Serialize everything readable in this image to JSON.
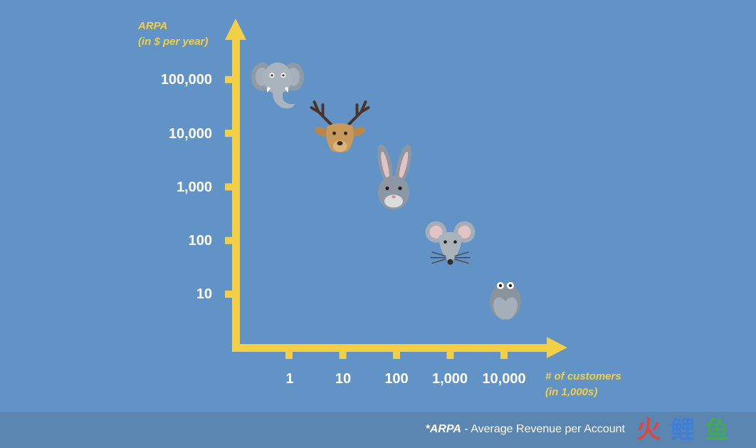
{
  "chart_data": {
    "type": "scatter",
    "title": "",
    "xlabel_lines": [
      "# of customers",
      "(in 1,000s)"
    ],
    "ylabel_lines": [
      "ARPA",
      "(in $ per year)"
    ],
    "x_scale": "log",
    "y_scale": "log",
    "x_ticks": [
      "1",
      "10",
      "100",
      "1,000",
      "10,000"
    ],
    "y_ticks": [
      "100,000",
      "10,000",
      "1,000",
      "100",
      "10"
    ],
    "points": [
      {
        "icon": "elephant-icon",
        "x": 1,
        "y": 100000
      },
      {
        "icon": "deer-icon",
        "x": 10,
        "y": 10000
      },
      {
        "icon": "rabbit-icon",
        "x": 100,
        "y": 1000
      },
      {
        "icon": "mouse-icon",
        "x": 1000,
        "y": 100
      },
      {
        "icon": "fly-icon",
        "x": 10000,
        "y": 10
      }
    ],
    "colors": {
      "background": "#6293c6",
      "axis": "#f2cf45",
      "label": "#f2cf45",
      "tick_text": "#ffffff"
    }
  },
  "footer": {
    "term": "*ARPA",
    "definition": " - Average Revenue per Account",
    "watermark": [
      "火",
      "鲤",
      "鱼"
    ]
  }
}
